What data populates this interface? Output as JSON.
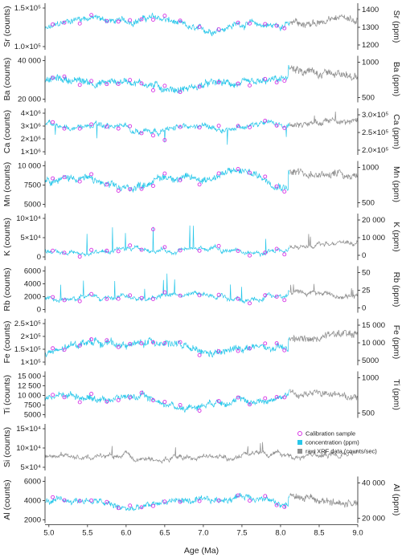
{
  "chart_data": {
    "type": "line",
    "xlabel": "Age (Ma)",
    "xlim": [
      4.95,
      9.0
    ],
    "xticks": [
      "5.0",
      "5.5",
      "6.0",
      "6.5",
      "7.0",
      "7.5",
      "8.0",
      "8.5",
      "9.0"
    ],
    "colors": {
      "concentration": "#29c7ea",
      "raw": "#8f8f8f",
      "calibration": "#d633e5"
    },
    "legend": {
      "placement": "right, Si panel",
      "entries": [
        {
          "key": "calibration",
          "label": "Calibration sample"
        },
        {
          "key": "concentration",
          "label": "concentration (ppm)"
        },
        {
          "key": "raw",
          "label": "raw XRF data (counts/sec)"
        }
      ]
    },
    "calibration_ages": [
      5.05,
      5.2,
      5.4,
      5.55,
      5.75,
      5.9,
      6.05,
      6.2,
      6.35,
      6.5,
      6.7,
      6.95,
      7.2,
      7.45,
      7.6,
      7.8,
      7.95,
      8.05
    ],
    "panels": [
      {
        "id": "sr",
        "left_label": "Sr (counts)",
        "right_label": "Sr (ppm)",
        "left_ticks": [
          "1.0×10⁵",
          "1.5×10⁵"
        ],
        "right_ticks": [
          "1200",
          "1300",
          "1400"
        ],
        "mean": 0.57,
        "amp": 0.18,
        "noise": 0.1,
        "spike": 0.0,
        "tail": 0.55
      },
      {
        "id": "ba",
        "left_label": "Ba (counts)",
        "right_label": "Ba (ppm)",
        "left_ticks": [
          "20 000",
          "40 000"
        ],
        "right_ticks": [
          "500",
          "1000"
        ],
        "mean": 0.4,
        "amp": 0.12,
        "noise": 0.12,
        "spike": 0.0,
        "tail": 0.7
      },
      {
        "id": "ca",
        "left_label": "Ca (counts)",
        "right_label": "Ca (ppm)",
        "left_ticks": [
          "1×10⁶",
          "2×10⁶",
          "3×10⁶",
          "4×10⁶"
        ],
        "right_ticks": [
          "2.0×10⁵",
          "2.5×10⁵",
          "3.0×10⁵"
        ],
        "mean": 0.6,
        "amp": 0.06,
        "noise": 0.08,
        "spike": -0.4,
        "tail": 0.65
      },
      {
        "id": "mn",
        "left_label": "Mn (counts)",
        "right_label": "Mn (ppm)",
        "left_ticks": [
          "5000",
          "7500",
          "10 000"
        ],
        "right_ticks": [
          "500",
          "1000"
        ],
        "mean": 0.6,
        "amp": 0.2,
        "noise": 0.12,
        "spike": 0.0,
        "tail": 0.8
      },
      {
        "id": "k",
        "left_label": "K (counts)",
        "right_label": "K (ppm)",
        "left_ticks": [
          "0",
          "5×10⁴",
          "10×10⁴"
        ],
        "right_ticks": [
          "0",
          "10 000",
          "20 000"
        ],
        "mean": 0.2,
        "amp": 0.06,
        "noise": 0.05,
        "spike": 0.55,
        "tail": 0.25
      },
      {
        "id": "rb",
        "left_label": "Rb (counts)",
        "right_label": "Rb (ppm)",
        "left_ticks": [
          "0",
          "2000",
          "4000",
          "6000"
        ],
        "right_ticks": [
          "0",
          "25",
          "50"
        ],
        "mean": 0.35,
        "amp": 0.06,
        "noise": 0.06,
        "spike": 0.45,
        "tail": 0.45
      },
      {
        "id": "fe",
        "left_label": "Fe (counts)",
        "right_label": "Fe (ppm)",
        "left_ticks": [
          "1×10⁵",
          "1.5×10⁵",
          "2×10⁵",
          "2.5×10⁵"
        ],
        "right_ticks": [
          "5000",
          "10 000",
          "15 000"
        ],
        "mean": 0.4,
        "amp": 0.18,
        "noise": 0.12,
        "spike": 0.0,
        "tail": 0.55
      },
      {
        "id": "ti",
        "left_label": "Ti (counts)",
        "right_label": "Ti (ppm)",
        "left_ticks": [
          "5000",
          "7500",
          "10 000",
          "12 500",
          "15 000"
        ],
        "right_ticks": [
          "500",
          "1000"
        ],
        "mean": 0.38,
        "amp": 0.16,
        "noise": 0.1,
        "spike": 0.0,
        "tail": 0.55
      },
      {
        "id": "si",
        "left_label": "Si (counts)",
        "right_label": "",
        "left_ticks": [
          "5×10⁴",
          "10×10⁴",
          "15×10⁴"
        ],
        "right_ticks": [],
        "mean": 0.3,
        "amp": 0.05,
        "noise": 0.06,
        "spike": 0.25,
        "tail": 0.3,
        "raw_only": true
      },
      {
        "id": "al",
        "left_label": "Al (counts)",
        "right_label": "Al (ppm)",
        "left_ticks": [
          "2000",
          "4000",
          "6000"
        ],
        "right_ticks": [
          "20 000",
          "40 000"
        ],
        "mean": 0.45,
        "amp": 0.15,
        "noise": 0.1,
        "spike": 0.0,
        "tail": 0.55
      }
    ]
  }
}
